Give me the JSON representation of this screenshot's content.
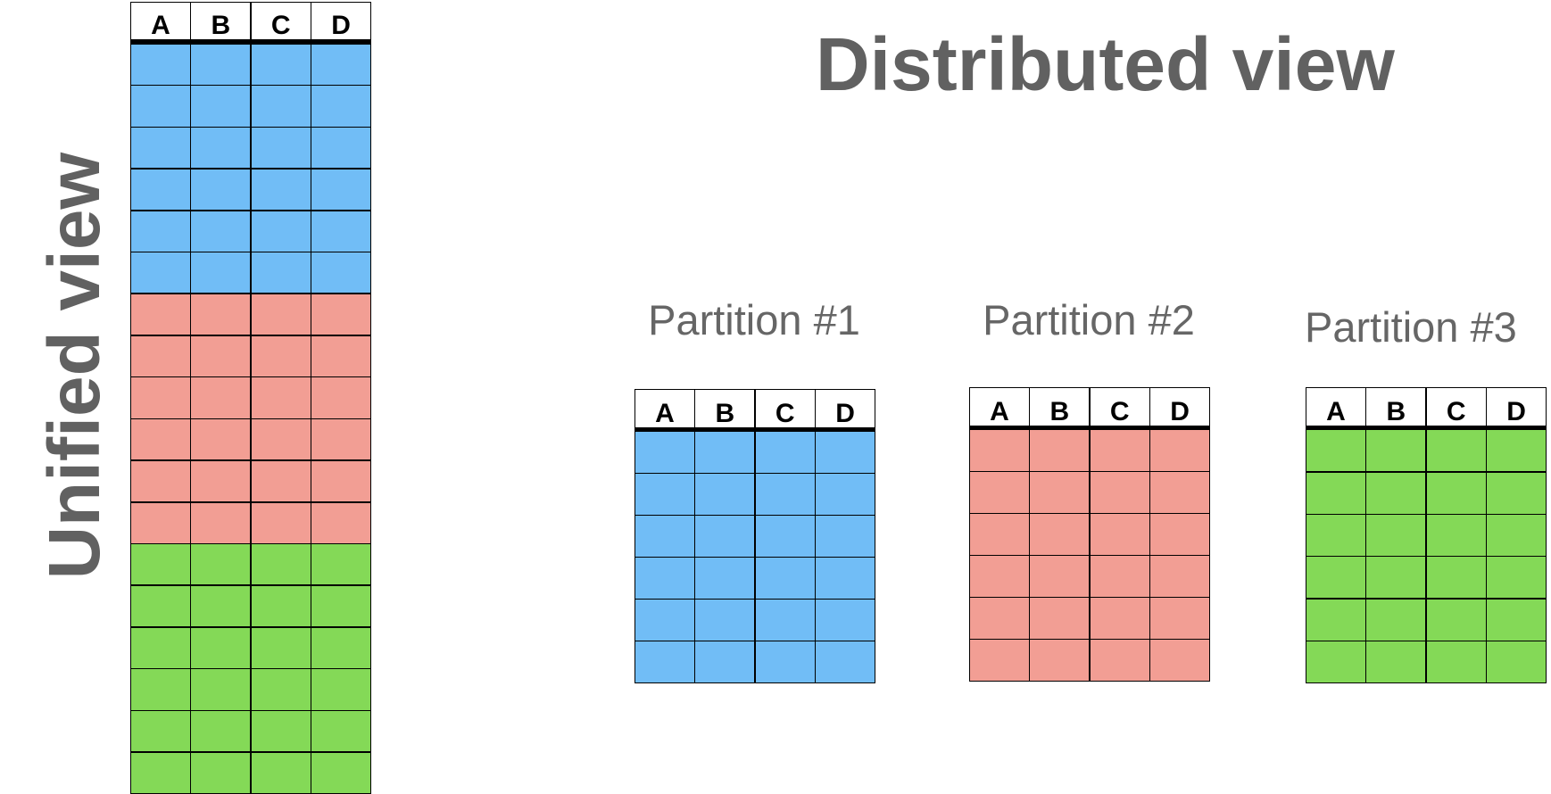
{
  "unified": {
    "title": "Unified view",
    "columns": [
      "A",
      "B",
      "C",
      "D"
    ],
    "row_colors": [
      "blue",
      "blue",
      "blue",
      "blue",
      "blue",
      "blue",
      "red",
      "red",
      "red",
      "red",
      "red",
      "red",
      "green",
      "green",
      "green",
      "green",
      "green",
      "green"
    ]
  },
  "distributed": {
    "title": "Distributed view",
    "partitions": [
      {
        "label": "Partition #1",
        "columns": [
          "A",
          "B",
          "C",
          "D"
        ],
        "rows": 6,
        "color": "blue"
      },
      {
        "label": "Partition #2",
        "columns": [
          "A",
          "B",
          "C",
          "D"
        ],
        "rows": 6,
        "color": "red"
      },
      {
        "label": "Partition #3",
        "columns": [
          "A",
          "B",
          "C",
          "D"
        ],
        "rows": 6,
        "color": "green"
      }
    ]
  },
  "colors": {
    "blue": "#71bdf6",
    "red": "#f29e94",
    "green": "#84d957",
    "title_text": "#616161",
    "partition_text": "#666666"
  }
}
